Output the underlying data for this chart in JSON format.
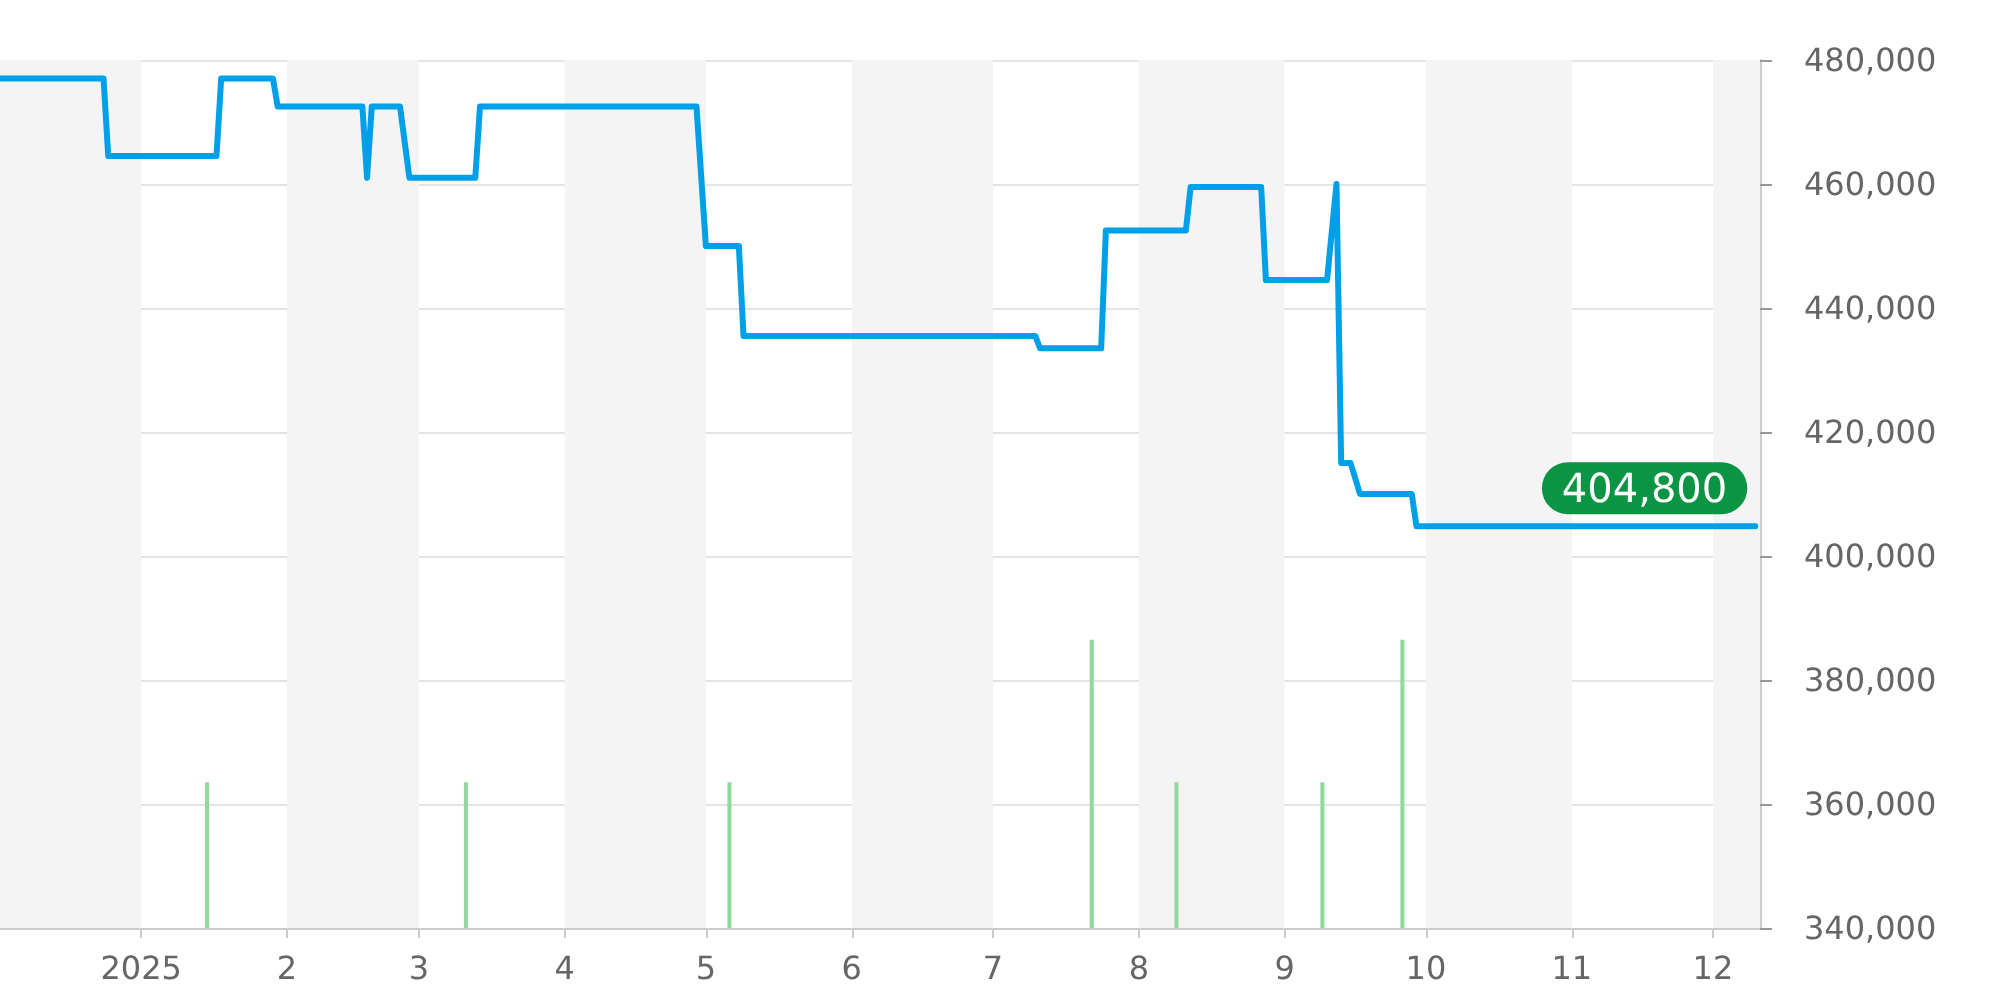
{
  "chart_data": {
    "type": "line",
    "xlim": [
      "2024-12-02",
      "2025-12-11"
    ],
    "xticks": [
      {
        "value": "2025-01-01",
        "label": "2025"
      },
      {
        "value": "2025-02-01",
        "label": "2"
      },
      {
        "value": "2025-03-01",
        "label": "3"
      },
      {
        "value": "2025-04-01",
        "label": "4"
      },
      {
        "value": "2025-05-01",
        "label": "5"
      },
      {
        "value": "2025-06-01",
        "label": "6"
      },
      {
        "value": "2025-07-01",
        "label": "7"
      },
      {
        "value": "2025-08-01",
        "label": "8"
      },
      {
        "value": "2025-09-01",
        "label": "9"
      },
      {
        "value": "2025-10-01",
        "label": "10"
      },
      {
        "value": "2025-11-01",
        "label": "11"
      },
      {
        "value": "2025-12-01",
        "label": "12"
      }
    ],
    "ylim": [
      340000,
      480000
    ],
    "yticks": [
      {
        "value": 340000,
        "label": "340,000"
      },
      {
        "value": 360000,
        "label": "360,000"
      },
      {
        "value": 380000,
        "label": "380,000"
      },
      {
        "value": 400000,
        "label": "400,000"
      },
      {
        "value": 420000,
        "label": "420,000"
      },
      {
        "value": 440000,
        "label": "440,000"
      },
      {
        "value": 460000,
        "label": "460,000"
      },
      {
        "value": 480000,
        "label": "480,000"
      }
    ],
    "grid": "y",
    "series": [
      {
        "color": "#00a0e9",
        "x": [
          "2024-12-02",
          "2024-12-24",
          "2024-12-25",
          "2025-01-17",
          "2025-01-18",
          "2025-01-29",
          "2025-01-30",
          "2025-02-17",
          "2025-02-18",
          "2025-02-19",
          "2025-02-25",
          "2025-02-27",
          "2025-03-13",
          "2025-03-14",
          "2025-04-29",
          "2025-05-01",
          "2025-05-08",
          "2025-05-09",
          "2025-07-10",
          "2025-07-11",
          "2025-07-24",
          "2025-07-25",
          "2025-08-11",
          "2025-08-12",
          "2025-08-27",
          "2025-08-28",
          "2025-09-10",
          "2025-09-12",
          "2025-09-13",
          "2025-09-15",
          "2025-09-17",
          "2025-09-28",
          "2025-09-29",
          "2025-12-10"
        ],
        "values": [
          477000,
          477000,
          464500,
          464500,
          477000,
          477000,
          472500,
          472500,
          461000,
          472500,
          472500,
          461000,
          461000,
          472500,
          472500,
          450000,
          450000,
          435500,
          435500,
          433500,
          433500,
          452500,
          452500,
          459500,
          459500,
          444500,
          444500,
          460000,
          415000,
          415000,
          410000,
          410000,
          404800,
          404800
        ]
      },
      {
        "type": "bar",
        "color": "#8fd99a",
        "x": [
          "2025-01-15",
          "2025-03-11",
          "2025-05-06",
          "2025-07-22",
          "2025-08-09",
          "2025-09-09",
          "2025-09-26"
        ],
        "values": [
          363500,
          363500,
          363500,
          386500,
          363500,
          363500,
          386500
        ]
      }
    ],
    "bands": [
      {
        "axis": "x",
        "from": "2024-12-02",
        "to": "2025-01-01",
        "color": "#f4f4f4"
      },
      {
        "axis": "x",
        "from": "2025-02-01",
        "to": "2025-03-01",
        "color": "#f4f4f4"
      },
      {
        "axis": "x",
        "from": "2025-04-01",
        "to": "2025-05-01",
        "color": "#f4f4f4"
      },
      {
        "axis": "x",
        "from": "2025-06-01",
        "to": "2025-07-01",
        "color": "#f4f4f4"
      },
      {
        "axis": "x",
        "from": "2025-08-01",
        "to": "2025-09-01",
        "color": "#f4f4f4"
      },
      {
        "axis": "x",
        "from": "2025-10-01",
        "to": "2025-11-01",
        "color": "#f4f4f4"
      },
      {
        "axis": "x",
        "from": "2025-12-01",
        "to": "2025-12-11",
        "color": "#f4f4f4"
      }
    ],
    "annotations": [
      {
        "text": "404,800",
        "x": "2025-12-10",
        "y": 404800
      }
    ]
  }
}
